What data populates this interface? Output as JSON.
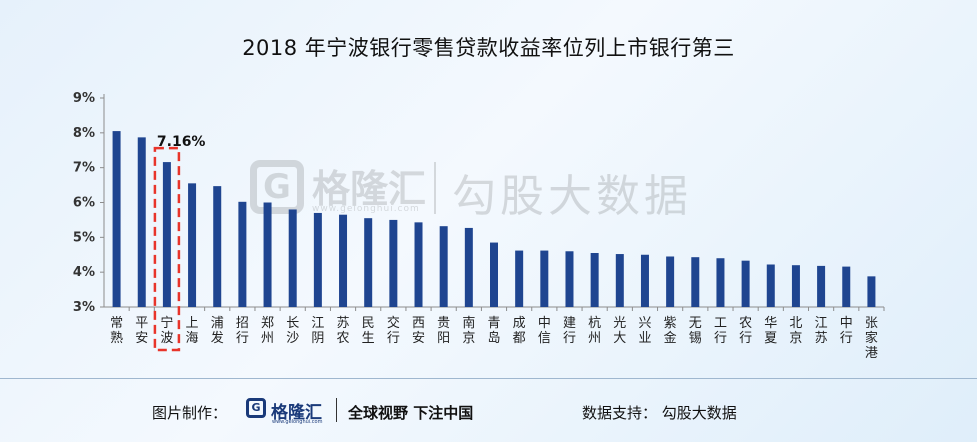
{
  "header": {
    "title": "2018 年宁波银行零售贷款收益率位列上市银行第三"
  },
  "watermark": {
    "logo_glyph": "G",
    "brand": "格隆汇",
    "url": "www.gelonghui.com",
    "text": "勾股大数据"
  },
  "footer": {
    "made_by_label": "图片制作：",
    "logo_glyph": "G",
    "brand": "格隆汇",
    "brand_url": "www.gelonghui.com",
    "slogan": "全球视野 下注中国",
    "support": "数据支持：  勾股大数据"
  },
  "chart_data": {
    "type": "bar",
    "title": "2018 年宁波银行零售贷款收益率位列上市银行第三",
    "xlabel": "",
    "ylabel": "",
    "categories": [
      "常熟",
      "平安",
      "宁波",
      "上海",
      "浦发",
      "招行",
      "郑州",
      "长沙",
      "江阴",
      "苏农",
      "民生",
      "交行",
      "西安",
      "贵阳",
      "南京",
      "青岛",
      "成都",
      "中信",
      "建行",
      "杭州",
      "光大",
      "兴业",
      "紫金",
      "无锡",
      "工行",
      "农行",
      "华夏",
      "北京",
      "江苏",
      "中行",
      "张家港"
    ],
    "values": [
      8.05,
      7.87,
      7.16,
      6.55,
      6.47,
      6.02,
      6.0,
      5.8,
      5.7,
      5.65,
      5.55,
      5.5,
      5.43,
      5.32,
      5.27,
      4.85,
      4.62,
      4.62,
      4.6,
      4.55,
      4.52,
      4.5,
      4.45,
      4.43,
      4.4,
      4.33,
      4.22,
      4.2,
      4.18,
      4.16,
      3.88
    ],
    "ylim": [
      3,
      9
    ],
    "yticks": [
      "3%",
      "4%",
      "5%",
      "6%",
      "7%",
      "8%",
      "9%"
    ],
    "highlight": {
      "category": "宁波",
      "label": "7.16%"
    },
    "grid": false,
    "colors": {
      "bar": "#1f4590",
      "highlight_box": "#e8342a",
      "axis": "#8c8c8c"
    }
  }
}
